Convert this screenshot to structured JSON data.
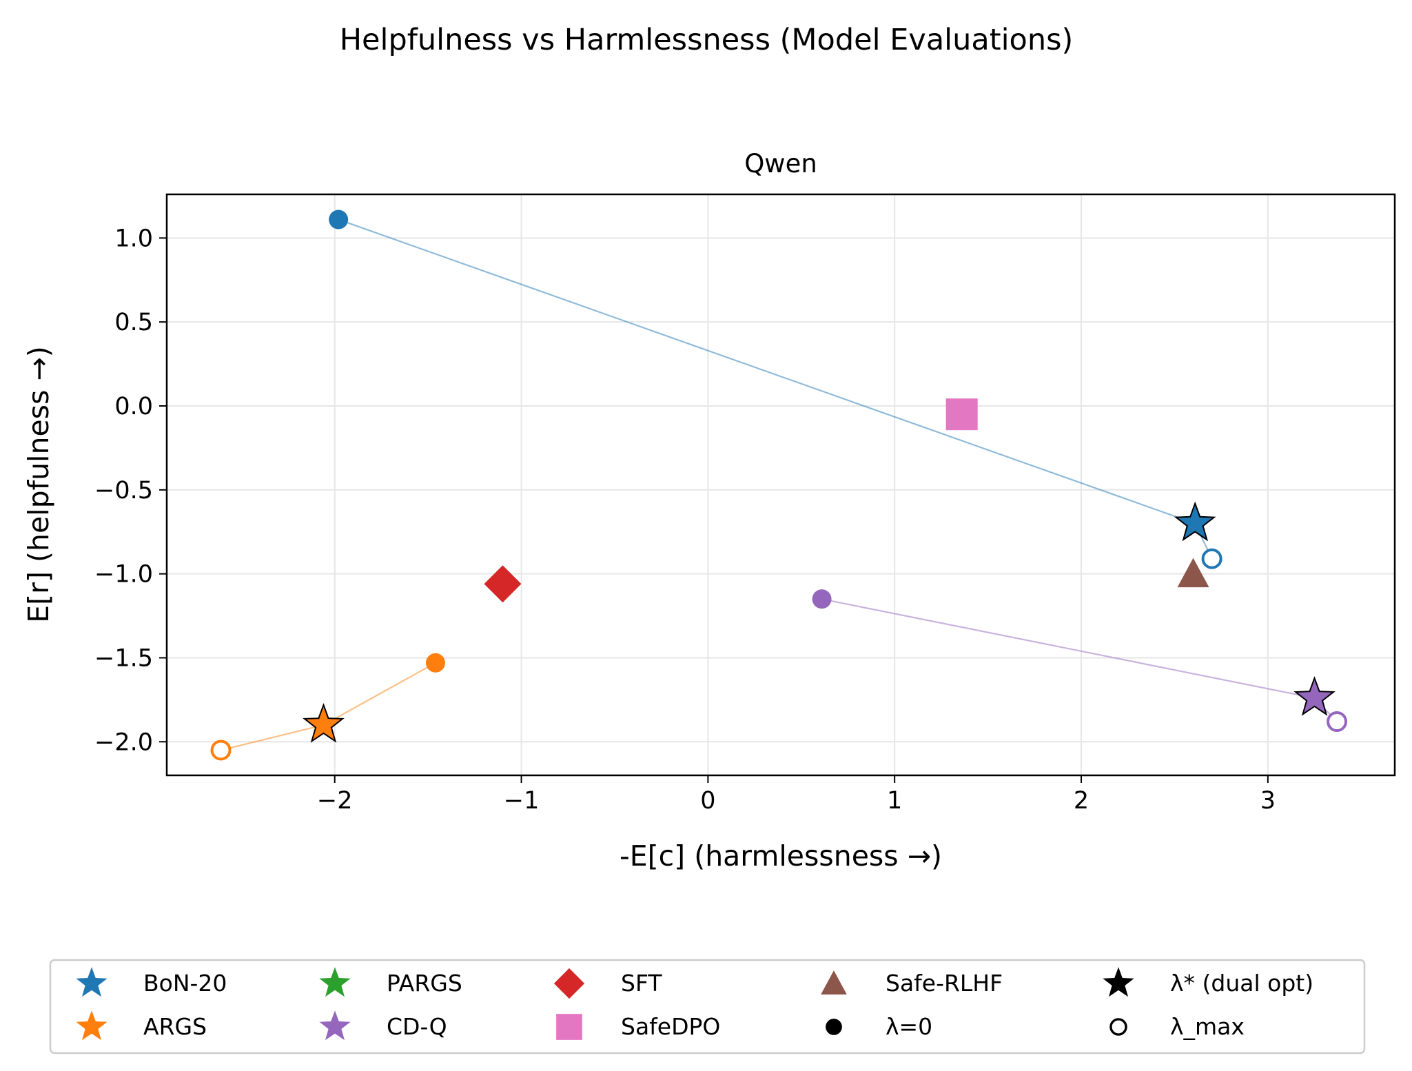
{
  "figure": {
    "suptitle": "Helpfulness vs Harmlessness (Model Evaluations)"
  },
  "chart_data": {
    "type": "scatter",
    "title": "Qwen",
    "xlabel": "-E[c]  (harmlessness →)",
    "ylabel": "E[r]  (helpfulness →)",
    "xlim": [
      -2.9,
      3.68
    ],
    "ylim": [
      -2.2,
      1.26
    ],
    "grid": true,
    "x_ticks": [
      -2,
      -1,
      0,
      1,
      2,
      3
    ],
    "x_tick_labels": [
      "−2",
      "−1",
      "0",
      "1",
      "2",
      "3"
    ],
    "y_ticks": [
      1.0,
      0.5,
      0.0,
      -0.5,
      -1.0,
      -1.5,
      -2.0
    ],
    "y_tick_labels": [
      "1.0",
      "0.5",
      "0.0",
      "−0.5",
      "−1.0",
      "−1.5",
      "−2.0"
    ],
    "series": [
      {
        "name": "BoN-20",
        "color": "#1f77b4",
        "path": [
          [
            -1.98,
            1.11
          ],
          [
            2.61,
            -0.7
          ],
          [
            2.7,
            -0.91
          ]
        ],
        "points": [
          {
            "marker": "circle",
            "x": -1.98,
            "y": 1.11
          },
          {
            "marker": "star",
            "x": 2.61,
            "y": -0.7
          },
          {
            "marker": "open-circle",
            "x": 2.7,
            "y": -0.91
          }
        ]
      },
      {
        "name": "ARGS",
        "color": "#ff7f0e",
        "path": [
          [
            -1.46,
            -1.53
          ],
          [
            -2.06,
            -1.9
          ],
          [
            -2.61,
            -2.05
          ]
        ],
        "points": [
          {
            "marker": "circle",
            "x": -1.46,
            "y": -1.53
          },
          {
            "marker": "star",
            "x": -2.06,
            "y": -1.9
          },
          {
            "marker": "open-circle",
            "x": -2.61,
            "y": -2.05
          }
        ]
      },
      {
        "name": "CD-Q",
        "color": "#9467bd",
        "path": [
          [
            0.61,
            -1.15
          ],
          [
            3.25,
            -1.74
          ],
          [
            3.37,
            -1.88
          ]
        ],
        "points": [
          {
            "marker": "circle",
            "x": 0.61,
            "y": -1.15
          },
          {
            "marker": "star",
            "x": 3.25,
            "y": -1.74
          },
          {
            "marker": "open-circle",
            "x": 3.37,
            "y": -1.88
          }
        ]
      },
      {
        "name": "SFT",
        "color": "#d62728",
        "points": [
          {
            "marker": "diamond",
            "x": -1.1,
            "y": -1.06
          }
        ]
      },
      {
        "name": "SafeDPO",
        "color": "#e377c2",
        "points": [
          {
            "marker": "square",
            "x": 1.36,
            "y": -0.05
          }
        ]
      },
      {
        "name": "Safe-RLHF",
        "color": "#8c564b",
        "points": [
          {
            "marker": "triangle",
            "x": 2.6,
            "y": -1.0
          }
        ]
      }
    ],
    "legend": {
      "placement": "bottom-center",
      "entries": [
        {
          "label": "BoN-20",
          "marker": "star",
          "color": "#1f77b4"
        },
        {
          "label": "ARGS",
          "marker": "star",
          "color": "#ff7f0e"
        },
        {
          "label": "PARGS",
          "marker": "star",
          "color": "#2ca02c"
        },
        {
          "label": "CD-Q",
          "marker": "star",
          "color": "#9467bd"
        },
        {
          "label": "SFT",
          "marker": "diamond",
          "color": "#d62728"
        },
        {
          "label": "SafeDPO",
          "marker": "square",
          "color": "#e377c2"
        },
        {
          "label": "Safe-RLHF",
          "marker": "triangle",
          "color": "#8c564b"
        },
        {
          "label": "λ=0",
          "marker": "circle",
          "color": "#000000"
        },
        {
          "label": "λ* (dual opt)",
          "marker": "star",
          "color": "#000000"
        },
        {
          "label": "λ_max",
          "marker": "open-circle",
          "color": "#000000"
        }
      ]
    }
  }
}
